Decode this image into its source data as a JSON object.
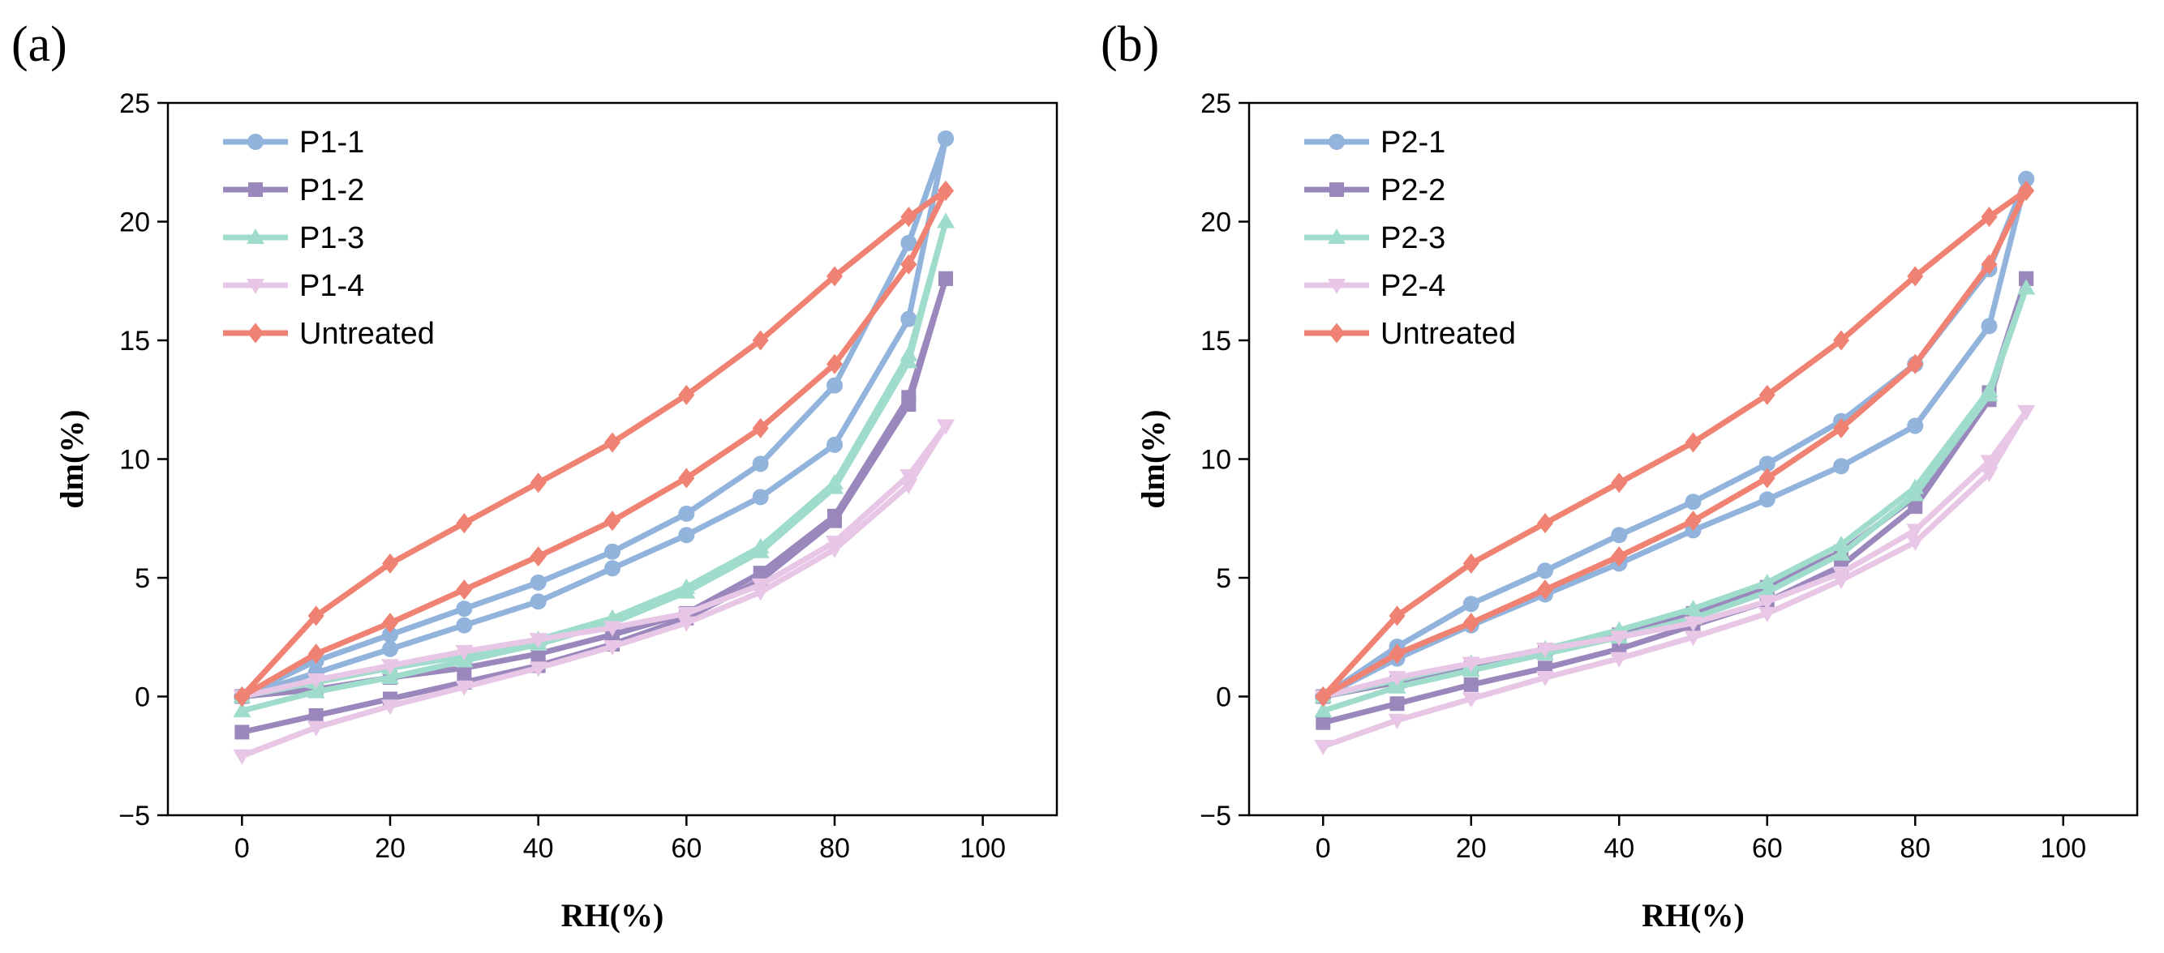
{
  "chart_data": [
    {
      "type": "line",
      "panel_label": "(a)",
      "xlabel": "RH(%)",
      "ylabel": "dm(%)",
      "xlim": [
        -10,
        110
      ],
      "ylim": [
        -5,
        25
      ],
      "xticks": [
        0,
        20,
        40,
        60,
        80,
        100
      ],
      "yticks": [
        -5,
        0,
        5,
        10,
        15,
        20,
        25
      ],
      "grid": false,
      "legend_position": "top-left",
      "series": [
        {
          "name": "P1-1",
          "color": "#92b4dc",
          "marker": "circle",
          "adsorption": {
            "x": [
              0,
              10,
              20,
              30,
              40,
              50,
              60,
              70,
              80,
              90,
              95
            ],
            "y": [
              0,
              1.0,
              2.0,
              3.0,
              4.0,
              5.4,
              6.8,
              8.4,
              10.6,
              15.9,
              23.5
            ]
          },
          "desorption": {
            "x": [
              95,
              90,
              80,
              70,
              60,
              50,
              40,
              30,
              20,
              10,
              0
            ],
            "y": [
              23.5,
              19.1,
              13.1,
              9.8,
              7.7,
              6.1,
              4.8,
              3.7,
              2.6,
              1.5,
              0
            ]
          }
        },
        {
          "name": "P1-2",
          "color": "#9a87bc",
          "marker": "square",
          "adsorption": {
            "x": [
              0,
              10,
              20,
              30,
              40,
              50,
              60,
              70,
              80,
              90,
              95
            ],
            "y": [
              -1.5,
              -0.8,
              -0.1,
              0.6,
              1.3,
              2.2,
              3.3,
              4.9,
              7.4,
              12.3,
              17.6
            ]
          },
          "desorption": {
            "x": [
              95,
              90,
              80,
              70,
              60,
              50,
              40,
              30,
              20,
              10,
              0
            ],
            "y": [
              17.6,
              12.6,
              7.6,
              5.2,
              3.5,
              2.6,
              1.8,
              1.2,
              0.8,
              0.3,
              0
            ]
          }
        },
        {
          "name": "P1-3",
          "color": "#9fdccb",
          "marker": "triangle-up",
          "adsorption": {
            "x": [
              0,
              10,
              20,
              30,
              40,
              50,
              60,
              70,
              80,
              90,
              95
            ],
            "y": [
              -0.6,
              0.2,
              0.8,
              1.5,
              2.2,
              3.1,
              4.4,
              6.1,
              8.8,
              14.1,
              20.0
            ]
          },
          "desorption": {
            "x": [
              95,
              90,
              80,
              70,
              60,
              50,
              40,
              30,
              20,
              10,
              0
            ],
            "y": [
              20.0,
              14.4,
              9.0,
              6.3,
              4.6,
              3.3,
              2.4,
              1.7,
              1.2,
              0.6,
              0
            ]
          }
        },
        {
          "name": "P1-4",
          "color": "#e7c6e6",
          "marker": "triangle-down",
          "adsorption": {
            "x": [
              0,
              10,
              20,
              30,
              40,
              50,
              60,
              70,
              80,
              90,
              95
            ],
            "y": [
              -2.5,
              -1.3,
              -0.4,
              0.4,
              1.2,
              2.1,
              3.1,
              4.4,
              6.2,
              8.9,
              11.4
            ]
          },
          "desorption": {
            "x": [
              95,
              90,
              80,
              70,
              60,
              50,
              40,
              30,
              20,
              10,
              0
            ],
            "y": [
              11.4,
              9.3,
              6.5,
              4.7,
              3.5,
              2.9,
              2.4,
              1.9,
              1.3,
              0.7,
              0
            ]
          }
        },
        {
          "name": "Untreated",
          "color": "#ef8272",
          "marker": "diamond",
          "adsorption": {
            "x": [
              0,
              10,
              20,
              30,
              40,
              50,
              60,
              70,
              80,
              90,
              95
            ],
            "y": [
              0,
              1.8,
              3.1,
              4.5,
              5.9,
              7.4,
              9.2,
              11.3,
              14.0,
              18.2,
              21.3
            ]
          },
          "desorption": {
            "x": [
              95,
              90,
              80,
              70,
              60,
              50,
              40,
              30,
              20,
              10,
              0
            ],
            "y": [
              21.3,
              20.2,
              17.7,
              15.0,
              12.7,
              10.7,
              9.0,
              7.3,
              5.6,
              3.4,
              0
            ]
          }
        }
      ]
    },
    {
      "type": "line",
      "panel_label": "(b)",
      "xlabel": "RH(%)",
      "ylabel": "dm(%)",
      "xlim": [
        -10,
        110
      ],
      "ylim": [
        -5,
        25
      ],
      "xticks": [
        0,
        20,
        40,
        60,
        80,
        100
      ],
      "yticks": [
        -5,
        0,
        5,
        10,
        15,
        20,
        25
      ],
      "grid": false,
      "legend_position": "top-left",
      "series": [
        {
          "name": "P2-1",
          "color": "#92b4dc",
          "marker": "circle",
          "adsorption": {
            "x": [
              0,
              10,
              20,
              30,
              40,
              50,
              60,
              70,
              80,
              90,
              95
            ],
            "y": [
              0,
              1.6,
              3.0,
              4.3,
              5.6,
              7.0,
              8.3,
              9.7,
              11.4,
              15.6,
              21.8
            ]
          },
          "desorption": {
            "x": [
              95,
              90,
              80,
              70,
              60,
              50,
              40,
              30,
              20,
              10,
              0
            ],
            "y": [
              21.8,
              18.0,
              14.0,
              11.6,
              9.8,
              8.2,
              6.8,
              5.3,
              3.9,
              2.1,
              0
            ]
          }
        },
        {
          "name": "P2-2",
          "color": "#9a87bc",
          "marker": "square",
          "adsorption": {
            "x": [
              0,
              10,
              20,
              30,
              40,
              50,
              60,
              70,
              80,
              90,
              95
            ],
            "y": [
              -1.1,
              -0.3,
              0.5,
              1.2,
              2.0,
              3.0,
              4.0,
              5.5,
              8.0,
              12.5,
              17.6
            ]
          },
          "desorption": {
            "x": [
              95,
              90,
              80,
              70,
              60,
              50,
              40,
              30,
              20,
              10,
              0
            ],
            "y": [
              17.6,
              12.8,
              8.4,
              6.1,
              4.6,
              3.5,
              2.6,
              1.9,
              1.2,
              0.6,
              0
            ]
          }
        },
        {
          "name": "P2-3",
          "color": "#9fdccb",
          "marker": "triangle-up",
          "adsorption": {
            "x": [
              0,
              10,
              20,
              30,
              40,
              50,
              60,
              70,
              80,
              90,
              95
            ],
            "y": [
              -0.6,
              0.4,
              1.1,
              1.8,
              2.5,
              3.3,
              4.4,
              6.0,
              8.5,
              12.7,
              17.2
            ]
          },
          "desorption": {
            "x": [
              95,
              90,
              80,
              70,
              60,
              50,
              40,
              30,
              20,
              10,
              0
            ],
            "y": [
              17.2,
              12.9,
              8.8,
              6.4,
              4.8,
              3.7,
              2.8,
              2.0,
              1.4,
              0.7,
              0
            ]
          }
        },
        {
          "name": "P2-4",
          "color": "#e7c6e6",
          "marker": "triangle-down",
          "adsorption": {
            "x": [
              0,
              10,
              20,
              30,
              40,
              50,
              60,
              70,
              80,
              90,
              95
            ],
            "y": [
              -2.1,
              -1.0,
              -0.1,
              0.8,
              1.6,
              2.5,
              3.5,
              4.9,
              6.5,
              9.4,
              12.0
            ]
          },
          "desorption": {
            "x": [
              95,
              90,
              80,
              70,
              60,
              50,
              40,
              30,
              20,
              10,
              0
            ],
            "y": [
              12.0,
              9.9,
              7.0,
              5.2,
              4.0,
              3.1,
              2.5,
              2.0,
              1.4,
              0.8,
              0
            ]
          }
        },
        {
          "name": "Untreated",
          "color": "#ef8272",
          "marker": "diamond",
          "adsorption": {
            "x": [
              0,
              10,
              20,
              30,
              40,
              50,
              60,
              70,
              80,
              90,
              95
            ],
            "y": [
              0,
              1.8,
              3.1,
              4.5,
              5.9,
              7.4,
              9.2,
              11.3,
              14.0,
              18.2,
              21.3
            ]
          },
          "desorption": {
            "x": [
              95,
              90,
              80,
              70,
              60,
              50,
              40,
              30,
              20,
              10,
              0
            ],
            "y": [
              21.3,
              20.2,
              17.7,
              15.0,
              12.7,
              10.7,
              9.0,
              7.3,
              5.6,
              3.4,
              0
            ]
          }
        }
      ]
    }
  ]
}
